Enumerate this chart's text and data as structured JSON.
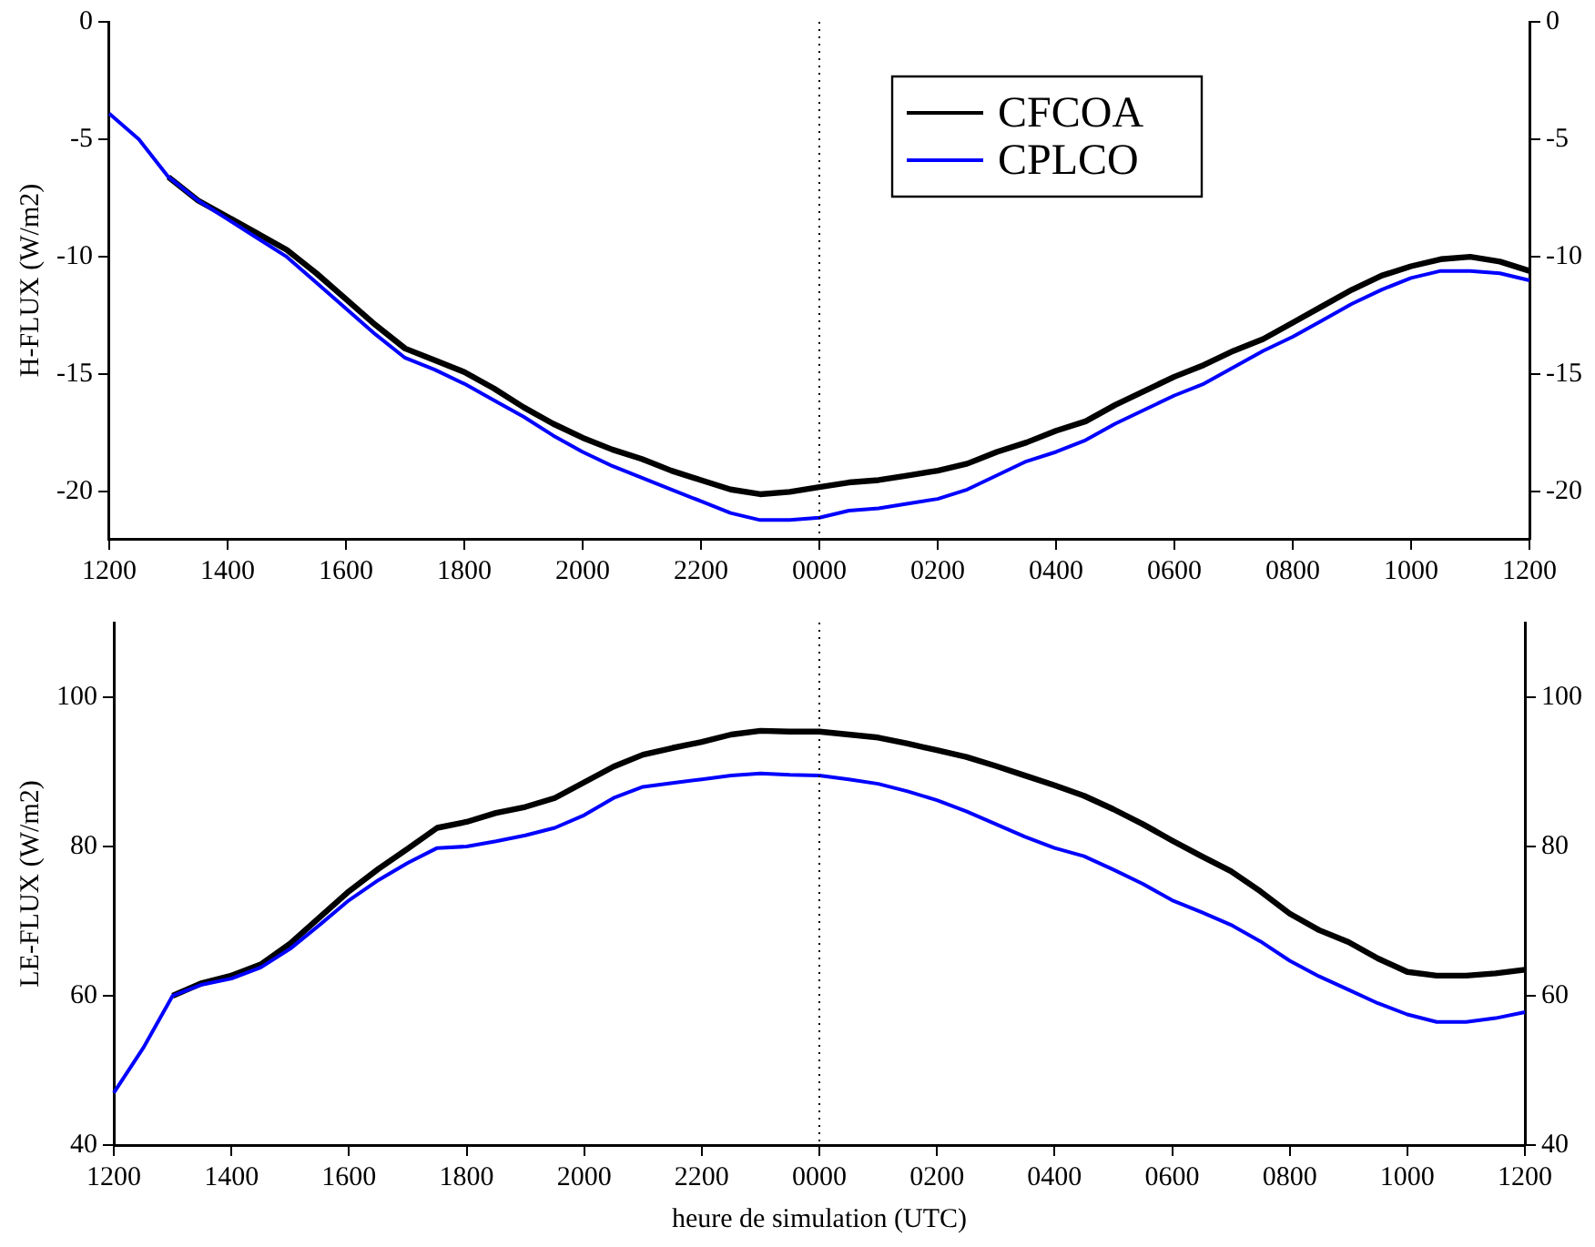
{
  "chart_data": [
    {
      "type": "line",
      "ylabel": "H-FLUX (W/m2)",
      "legend": "top right",
      "grid": false,
      "marker": "none",
      "line_style": "solid",
      "categories": [
        "1200",
        null,
        null,
        null,
        "1400",
        null,
        null,
        null,
        "1600",
        null,
        null,
        null,
        "1800",
        null,
        null,
        null,
        "2000",
        null,
        null,
        null,
        "2200",
        null,
        null,
        null,
        "0000",
        null,
        null,
        null,
        "0200",
        null,
        null,
        null,
        "0400",
        null,
        null,
        null,
        "0600",
        null,
        null,
        null,
        "0800",
        null,
        null,
        null,
        "1000",
        null,
        null,
        null,
        "1200"
      ],
      "ylim": [
        -22,
        0
      ],
      "yticks": [
        -20,
        -15,
        -10,
        -5,
        0
      ],
      "y2lim": [
        -22,
        0
      ],
      "y2ticks": [
        -20,
        -15,
        -10,
        -5,
        0
      ],
      "ref_lines": [
        {
          "axis": "x",
          "value": "0000",
          "color": "#000000",
          "line_style": "dotted"
        }
      ],
      "series": [
        {
          "name": "CFCOA",
          "color": "#000000",
          "values": [
            null,
            null,
            -6.6,
            -7.6,
            -8.3,
            -9.0,
            -9.7,
            -10.7,
            -11.8,
            -12.9,
            -13.9,
            -14.4,
            -14.9,
            -15.6,
            -16.4,
            -17.1,
            -17.7,
            -18.2,
            -18.6,
            -19.1,
            -19.5,
            -19.9,
            -20.1,
            -20.0,
            -19.8,
            -19.6,
            -19.5,
            -19.3,
            -19.1,
            -18.8,
            -18.3,
            -17.9,
            -17.4,
            -17.0,
            -16.3,
            -15.7,
            -15.1,
            -14.6,
            -14.0,
            -13.5,
            -12.8,
            -12.1,
            -11.4,
            -10.8,
            -10.4,
            -10.1,
            -10.0,
            -10.2,
            -10.6
          ]
        },
        {
          "name": "CPLCO",
          "color": "#0000ff",
          "values": [
            -3.9,
            -5.0,
            -6.6,
            -7.6,
            -8.4,
            -9.2,
            -10.0,
            -11.1,
            -12.2,
            -13.3,
            -14.3,
            -14.8,
            -15.4,
            -16.1,
            -16.8,
            -17.6,
            -18.3,
            -18.9,
            -19.4,
            -19.9,
            -20.4,
            -20.9,
            -21.2,
            -21.2,
            -21.1,
            -20.8,
            -20.7,
            -20.5,
            -20.3,
            -19.9,
            -19.3,
            -18.7,
            -18.3,
            -17.8,
            -17.1,
            -16.5,
            -15.9,
            -15.4,
            -14.7,
            -14.0,
            -13.4,
            -12.7,
            -12.0,
            -11.4,
            -10.9,
            -10.6,
            -10.6,
            -10.7,
            -11.0
          ]
        }
      ]
    },
    {
      "type": "line",
      "xlabel": "heure de simulation (UTC)",
      "ylabel": "LE-FLUX (W/m2)",
      "grid": false,
      "marker": "none",
      "line_style": "solid",
      "categories": [
        "1200",
        null,
        null,
        null,
        "1400",
        null,
        null,
        null,
        "1600",
        null,
        null,
        null,
        "1800",
        null,
        null,
        null,
        "2000",
        null,
        null,
        null,
        "2200",
        null,
        null,
        null,
        "0000",
        null,
        null,
        null,
        "0200",
        null,
        null,
        null,
        "0400",
        null,
        null,
        null,
        "0600",
        null,
        null,
        null,
        "0800",
        null,
        null,
        null,
        "1000",
        null,
        null,
        null,
        "1200"
      ],
      "ylim": [
        40,
        110
      ],
      "yticks": [
        40,
        60,
        80,
        100
      ],
      "y2lim": [
        40,
        110
      ],
      "y2ticks": [
        40,
        60,
        80,
        100
      ],
      "ref_lines": [
        {
          "axis": "x",
          "value": "0000",
          "color": "#000000",
          "line_style": "dotted"
        }
      ],
      "series": [
        {
          "color": "#000000",
          "values": [
            null,
            null,
            60,
            61.7,
            62.7,
            64.2,
            67,
            70.5,
            74,
            77,
            79.7,
            82.5,
            83.3,
            84.5,
            85.3,
            86.5,
            88.6,
            90.7,
            92.3,
            93.2,
            94,
            95,
            95.5,
            95.4,
            95.4,
            95,
            94.6,
            93.8,
            92.9,
            92,
            90.8,
            89.5,
            88.2,
            86.8,
            85,
            83,
            80.8,
            78.7,
            76.7,
            74,
            71,
            68.8,
            67.2,
            65,
            63.2,
            62.7,
            62.7,
            63,
            63.5
          ]
        },
        {
          "color": "#0000ff",
          "values": [
            47,
            53,
            60,
            61.5,
            62.3,
            63.8,
            66.3,
            69.5,
            72.8,
            75.5,
            77.8,
            79.8,
            80,
            80.7,
            81.5,
            82.5,
            84.2,
            86.5,
            88,
            88.5,
            89,
            89.5,
            89.8,
            89.6,
            89.5,
            89,
            88.4,
            87.4,
            86.2,
            84.7,
            83,
            81.3,
            79.8,
            78.7,
            76.9,
            75,
            72.8,
            71.2,
            69.5,
            67.3,
            64.7,
            62.6,
            60.8,
            59,
            57.5,
            56.5,
            56.5,
            57,
            57.8
          ]
        }
      ]
    }
  ]
}
